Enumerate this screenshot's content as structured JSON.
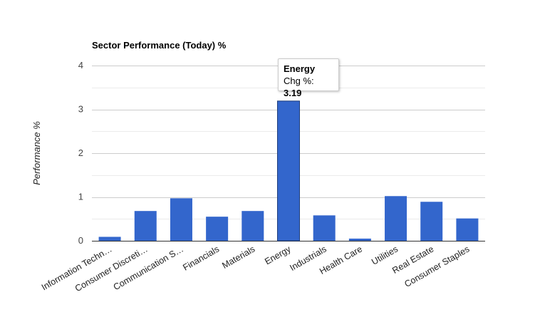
{
  "chart_data": {
    "type": "bar",
    "title": "Sector Performance (Today) %",
    "ylabel": "Performance %",
    "xlabel": "",
    "categories": [
      "Information Techn…",
      "Consumer Discreti…",
      "Communication S…",
      "Financials",
      "Materials",
      "Energy",
      "Industrials",
      "Health Care",
      "Utilities",
      "Real Estate",
      "Consumer Staples"
    ],
    "series": [
      {
        "values": [
          0.09,
          0.68,
          0.97,
          0.55,
          0.68,
          3.19,
          0.58,
          0.05,
          1.02,
          0.89,
          0.51
        ]
      }
    ],
    "ylim": [
      0,
      4
    ],
    "yticks": [
      "0",
      "1",
      "2",
      "3",
      "4"
    ],
    "grid": true,
    "bar_color": "#3366cc",
    "highlighted_category_index": 5,
    "tooltip": {
      "title": "Energy",
      "label": "Chg %:",
      "value": "3.19"
    }
  }
}
